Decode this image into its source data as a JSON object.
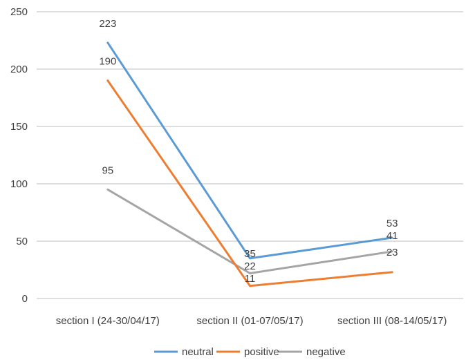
{
  "chart_data": {
    "type": "line",
    "title": "",
    "xlabel": "",
    "ylabel": "",
    "categories": [
      "section I (24-30/04/17)",
      "section II (01-07/05/17)",
      "section III (08-14/05/17)"
    ],
    "ylim": [
      0,
      250
    ],
    "yticks": [
      0,
      50,
      100,
      150,
      200,
      250
    ],
    "grid": true,
    "legend_position": "bottom",
    "series": [
      {
        "name": "neutral",
        "values": [
          223,
          35,
          53
        ],
        "color": "#5b9bd5",
        "labels": [
          "223",
          "35",
          "53"
        ]
      },
      {
        "name": "positive",
        "values": [
          190,
          11,
          23
        ],
        "color": "#ed7d31",
        "labels": [
          "190",
          "11",
          "23"
        ]
      },
      {
        "name": "negative",
        "values": [
          95,
          22,
          41
        ],
        "color": "#a5a5a5",
        "labels": [
          "95",
          "22",
          "41"
        ]
      }
    ]
  }
}
